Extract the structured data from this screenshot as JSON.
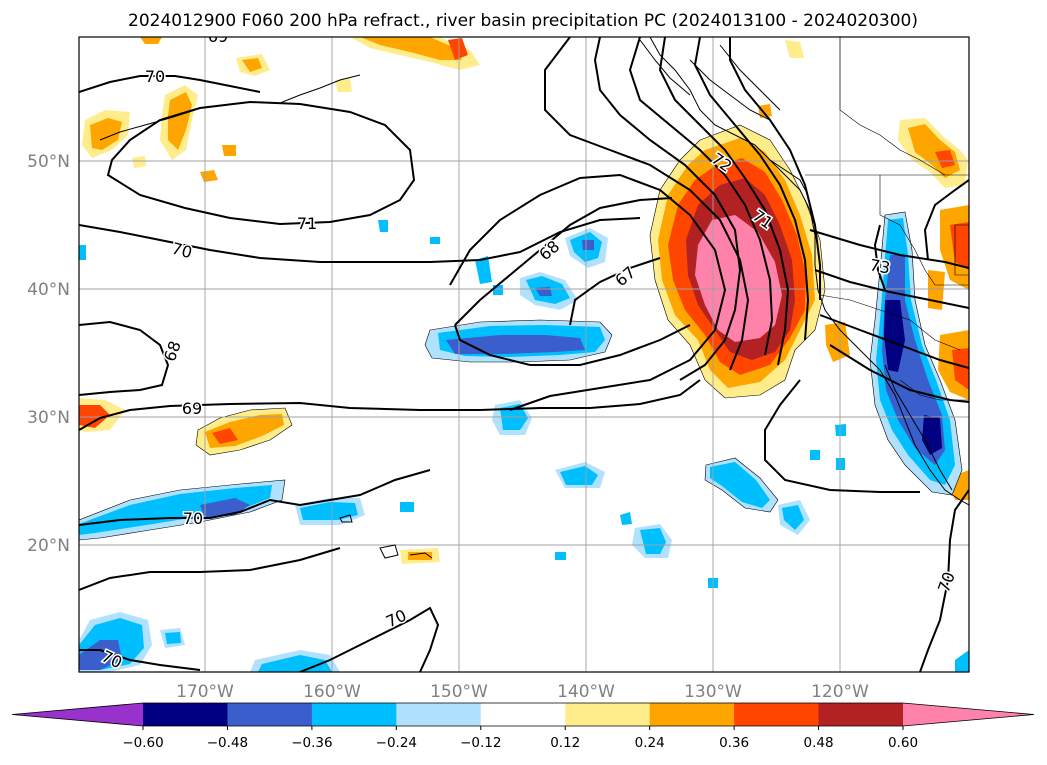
{
  "title": "2024012900 F060 200 hPa refract., river basin precipitation PC (2024013100 - 2024020300)",
  "lat_labels": [
    "50°N",
    "40°N",
    "30°N",
    "20°N"
  ],
  "lon_labels": [
    "170°W",
    "160°W",
    "150°W",
    "140°W",
    "130°W",
    "120°W"
  ],
  "colorbar": {
    "colors": [
      "#9932cc",
      "#000080",
      "#3a5fcd",
      "#00bfff",
      "#b0e2ff",
      "#ffffff",
      "#ffec8b",
      "#ffa500",
      "#ff4500",
      "#b22222",
      "#ff82ab"
    ],
    "tick_labels": [
      "−0.60",
      "−0.48",
      "−0.36",
      "−0.24",
      "−0.12",
      "0.12",
      "0.24",
      "0.36",
      "0.48",
      "0.60"
    ],
    "extend": "both"
  },
  "contour_labels": [
    {
      "text": "70",
      "rot": 0
    },
    {
      "text": "71",
      "rot": 0
    },
    {
      "text": "70",
      "rot": 15
    },
    {
      "text": "68",
      "rot": -70
    },
    {
      "text": "69",
      "rot": 0
    },
    {
      "text": "70",
      "rot": 0
    },
    {
      "text": "70",
      "rot": -25
    },
    {
      "text": "70",
      "rot": 25
    },
    {
      "text": "68",
      "rot": -40
    },
    {
      "text": "67",
      "rot": -40
    },
    {
      "text": "72",
      "rot": 35
    },
    {
      "text": "71",
      "rot": 35
    },
    {
      "text": "73",
      "rot": 10
    },
    {
      "text": "70",
      "rot": -70
    },
    {
      "text": "69",
      "rot": 0
    }
  ]
}
